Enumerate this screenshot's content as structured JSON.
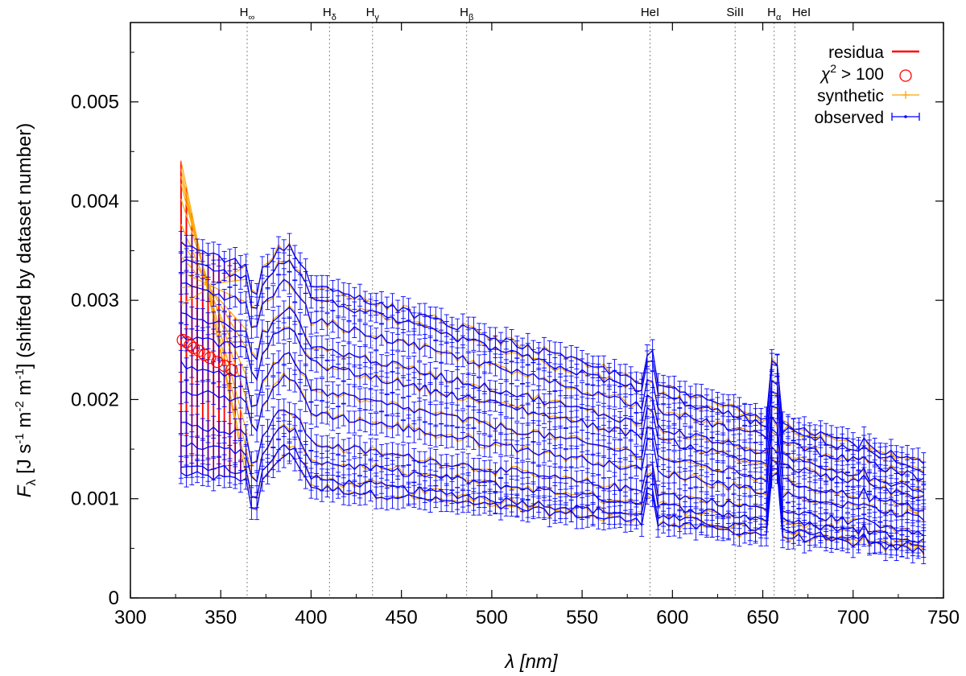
{
  "chart_data": {
    "type": "line",
    "xlabel": "λ [nm]",
    "ylabel": "F_λ [J s^-1 m^-2 m^-1] (shifted by dataset number)",
    "xlim": [
      300,
      750
    ],
    "ylim": [
      0,
      0.0058
    ],
    "x_ticks": [
      300,
      350,
      400,
      450,
      500,
      550,
      600,
      650,
      700,
      750
    ],
    "y_ticks": [
      0,
      0.001,
      0.002,
      0.003,
      0.004,
      0.005
    ],
    "x_tick_labels": [
      "300",
      "350",
      "400",
      "450",
      "500",
      "550",
      "600",
      "650",
      "700",
      "750"
    ],
    "y_tick_labels": [
      "0",
      "0.001",
      "0.002",
      "0.003",
      "0.004",
      "0.005"
    ],
    "grid": false,
    "legend_position": "top-right",
    "legend": [
      {
        "label": "residua",
        "color": "#ff0000",
        "style": "line"
      },
      {
        "label": "χ² > 100",
        "color": "#ff0000",
        "style": "circle"
      },
      {
        "label": "synthetic",
        "color": "#ffa500",
        "style": "cross-line"
      },
      {
        "label": "observed",
        "color": "#0000ff",
        "style": "errorbar-line"
      }
    ],
    "spectral_lines": [
      {
        "label": "H∞",
        "x": 364.6
      },
      {
        "label": "Hδ",
        "x": 410.2
      },
      {
        "label": "Hγ",
        "x": 434.0
      },
      {
        "label": "Hβ",
        "x": 486.1
      },
      {
        "label": "HeI",
        "x": 587.6
      },
      {
        "label": "SiII",
        "x": 634.7
      },
      {
        "label": "Hα",
        "x": 656.3
      },
      {
        "label": "HeI",
        "x": 667.8
      }
    ],
    "observed_range_nm": [
      328,
      740
    ],
    "dataset_count": 11,
    "series_start_levels": [
      0.00125,
      0.00135,
      0.00155,
      0.00175,
      0.0021,
      0.00235,
      0.00265,
      0.00285,
      0.00315,
      0.0034,
      0.00355
    ],
    "synthetic_top_levels": [
      0.0047,
      0.0046,
      0.0045,
      0.0044,
      0.0042,
      0.0039,
      0.0037,
      0.0035,
      0.0033,
      0.0031,
      0.0029
    ],
    "chi2_points": [
      {
        "x": 329,
        "y": 0.0026
      },
      {
        "x": 331,
        "y": 0.00258
      },
      {
        "x": 333,
        "y": 0.00255
      },
      {
        "x": 335,
        "y": 0.00252
      },
      {
        "x": 338,
        "y": 0.00249
      },
      {
        "x": 341,
        "y": 0.00245
      },
      {
        "x": 344,
        "y": 0.00242
      },
      {
        "x": 348,
        "y": 0.00238
      },
      {
        "x": 352,
        "y": 0.00234
      },
      {
        "x": 356,
        "y": 0.0023
      }
    ],
    "colors": {
      "residua": "#ff0000",
      "chi2": "#ff0000",
      "synthetic": "#ffa500",
      "observed": "#0000ff",
      "line_marker": "#888888"
    }
  }
}
